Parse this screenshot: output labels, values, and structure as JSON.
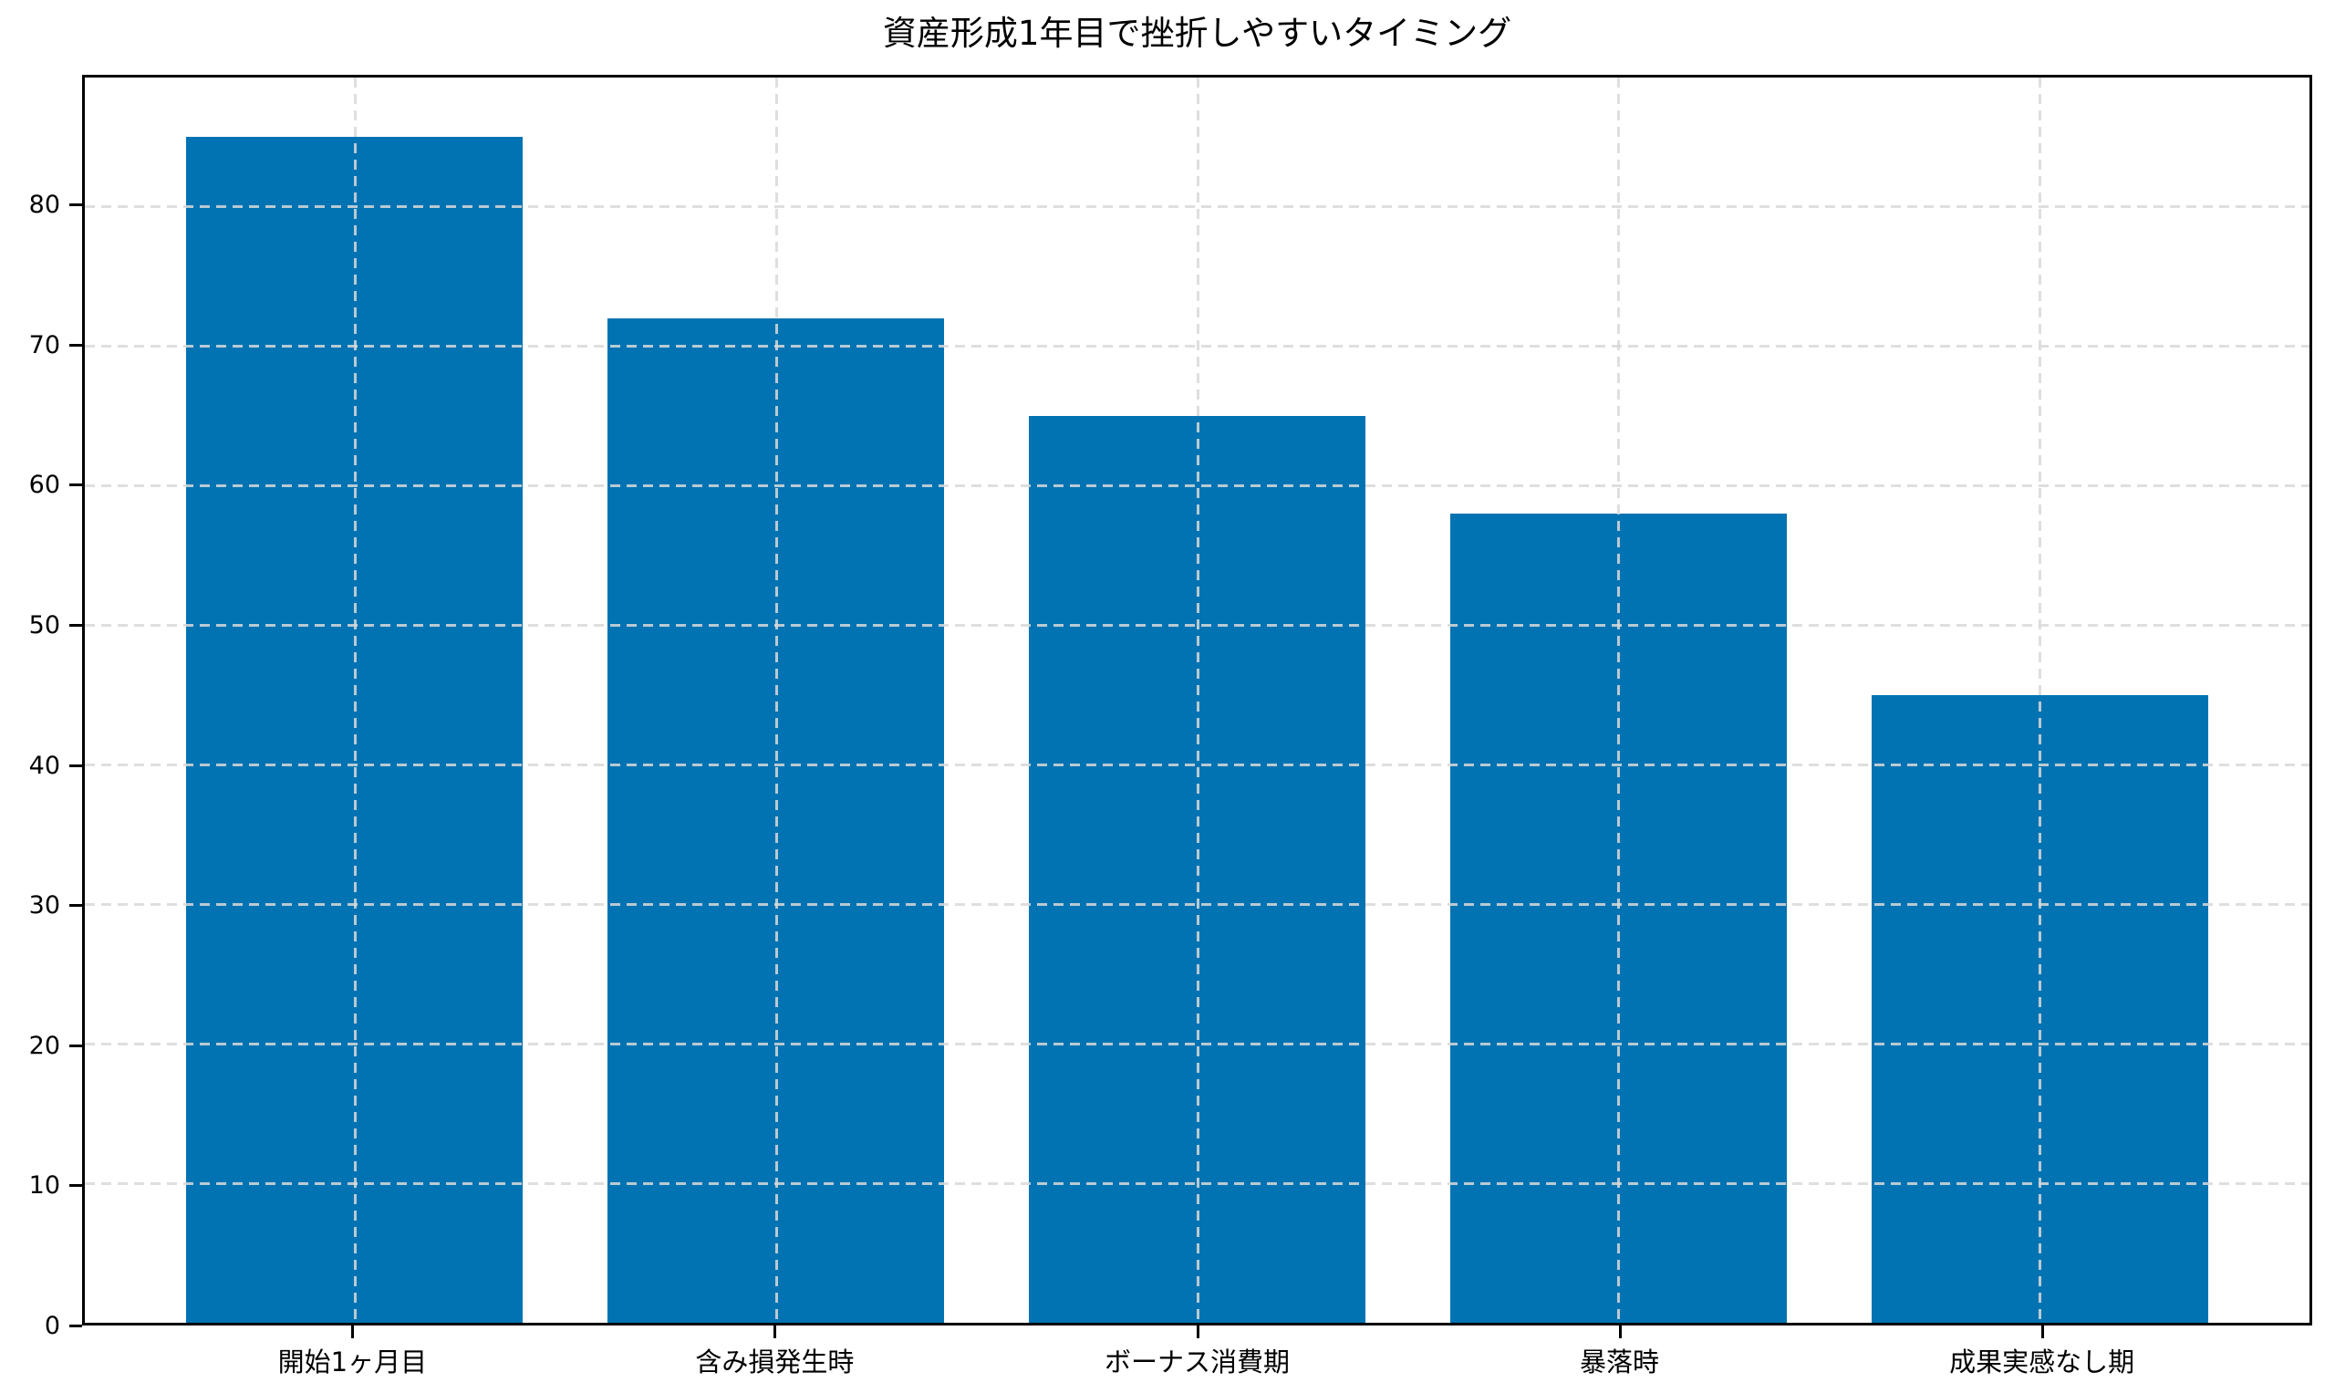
{
  "chart_data": {
    "type": "bar",
    "title": "資産形成1年目で挫折しやすいタイミング",
    "categories": [
      "開始1ヶ月目",
      "含み損発生時",
      "ボーナス消費期",
      "暴落時",
      "成果実感なし期"
    ],
    "values": [
      85,
      72,
      65,
      58,
      45
    ],
    "yticks": [
      0,
      10,
      20,
      30,
      40,
      50,
      60,
      70,
      80
    ],
    "ylim": [
      0,
      89.25
    ],
    "xlabel": "",
    "ylabel": "",
    "bar_width_fraction": 0.8,
    "x_margin_fraction": 0.05,
    "grid": "dashed, both axes, drawn above bars",
    "legend": "none",
    "colors": {
      "bar": "#0173b2",
      "spine": "#000000",
      "grid": "#d9d9d9",
      "text": "#000000",
      "background": "#ffffff"
    }
  }
}
